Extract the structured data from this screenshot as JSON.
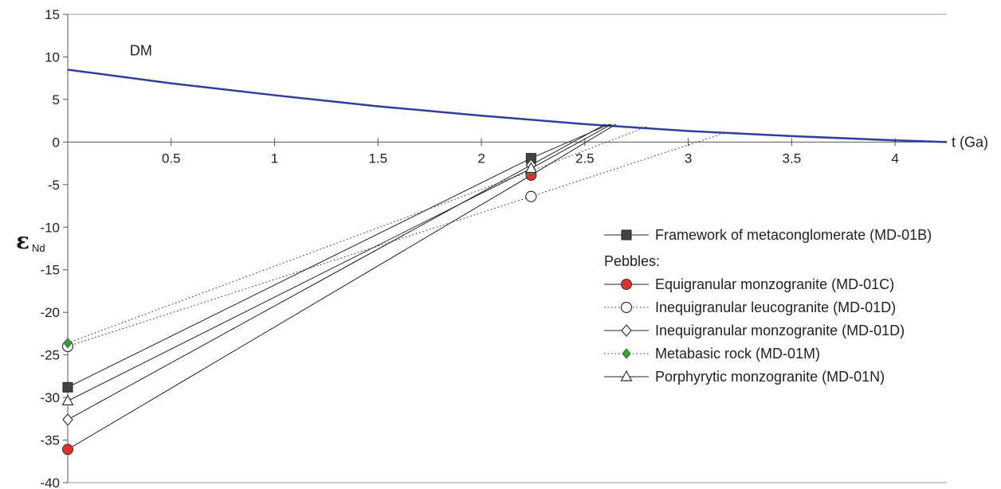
{
  "chart_data": {
    "type": "line",
    "xlabel": "t (Ga)",
    "ylabel_symbol": "ε",
    "ylabel_subscript": "Nd",
    "xlim": [
      0,
      4.25
    ],
    "ylim": [
      -40,
      15
    ],
    "x_ticks": [
      0.5,
      1,
      1.5,
      2,
      2.5,
      3,
      3.5,
      4
    ],
    "y_ticks": [
      15,
      10,
      5,
      0,
      -5,
      -10,
      -15,
      -20,
      -25,
      -30,
      -35,
      -40
    ],
    "grid": false,
    "dm_label": "DM",
    "colors": {
      "dm_line": "#2e3e9e",
      "red_marker": "#e03030",
      "green_marker": "#3aa03a",
      "dark_marker": "#444444"
    },
    "dm_curve": {
      "name": "DM",
      "points": [
        [
          0,
          8.5
        ],
        [
          0.5,
          6.9
        ],
        [
          1.0,
          5.5
        ],
        [
          1.5,
          4.2
        ],
        [
          2.0,
          3.1
        ],
        [
          2.5,
          2.1
        ],
        [
          3.0,
          1.3
        ],
        [
          3.5,
          0.7
        ],
        [
          4.0,
          0.2
        ],
        [
          4.25,
          0.0
        ]
      ]
    },
    "series": [
      {
        "name": "Framework of metaconglomerate (MD-01B)",
        "marker": "filled-square",
        "line": "solid",
        "points": [
          [
            0,
            -28.8
          ],
          [
            2.24,
            -1.9
          ],
          [
            2.62,
            2.1
          ]
        ]
      },
      {
        "name": "Equigranular monzogranite (MD-01C)",
        "marker": "red-circle",
        "line": "solid",
        "points": [
          [
            0,
            -36.1
          ],
          [
            2.24,
            -3.9
          ],
          [
            2.65,
            2.1
          ]
        ]
      },
      {
        "name": "Inequigranular leucogranite (MD-01D)",
        "marker": "open-circle",
        "line": "dotted",
        "points": [
          [
            0,
            -24.0
          ],
          [
            2.24,
            -6.4
          ],
          [
            3.18,
            1.1
          ]
        ]
      },
      {
        "name": "Inequigranular monzogranite (MD-01D)",
        "marker": "open-diamond",
        "line": "solid",
        "points": [
          [
            0,
            -32.6
          ],
          [
            2.24,
            -2.7
          ],
          [
            2.6,
            2.1
          ]
        ]
      },
      {
        "name": "Metabasic rock (MD-01M)",
        "marker": "green-diamond",
        "line": "dotted",
        "points": [
          [
            0,
            -23.6
          ],
          [
            2.24,
            -3.4
          ],
          [
            2.8,
            1.8
          ]
        ]
      },
      {
        "name": "Porphyrytic monzogranite (MD-01N)",
        "marker": "open-triangle",
        "line": "solid",
        "points": [
          [
            0,
            -30.4
          ],
          [
            2.24,
            -3.1
          ],
          [
            2.63,
            2.1
          ]
        ]
      }
    ],
    "legend": {
      "placement": "bottom-right",
      "pebbles_heading": "Pebbles:",
      "entries": [
        {
          "label": "Framework of metaconglomerate (MD-01B)",
          "marker": "filled-square",
          "line": "solid"
        },
        {
          "label": "Equigranular monzogranite (MD-01C)",
          "marker": "red-circle",
          "line": "solid"
        },
        {
          "label": "Inequigranular leucogranite (MD-01D)",
          "marker": "open-circle",
          "line": "dotted"
        },
        {
          "label": "Inequigranular monzogranite (MD-01D)",
          "marker": "open-diamond",
          "line": "solid"
        },
        {
          "label": "Metabasic rock (MD-01M)",
          "marker": "green-diamond",
          "line": "dotted"
        },
        {
          "label": "Porphyrytic monzogranite (MD-01N)",
          "marker": "open-triangle",
          "line": "solid"
        }
      ]
    }
  }
}
